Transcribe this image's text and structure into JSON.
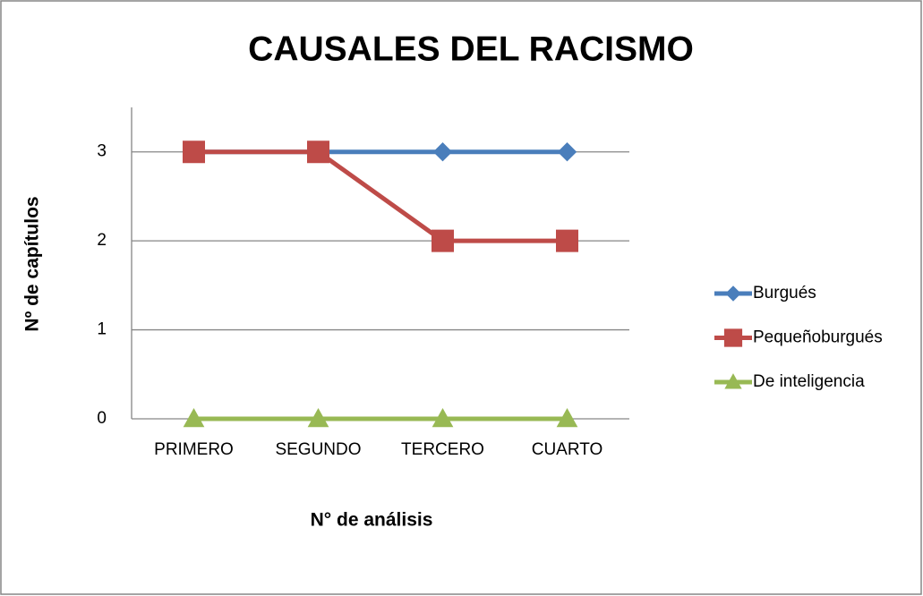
{
  "chart_data": {
    "type": "line",
    "title": "CAUSALES DEL RACISMO",
    "x_label": "N° de análisis",
    "y_label": "Nº de capítulos",
    "categories": [
      "PRIMERO",
      "SEGUNDO",
      "TERCERO",
      "CUARTO"
    ],
    "series": [
      {
        "name": "Burgués",
        "color": "#4a7ebb",
        "marker": "diamond",
        "values": [
          3,
          3,
          3,
          3
        ]
      },
      {
        "name": "Pequeñoburgués",
        "color": "#be4b48",
        "marker": "square",
        "values": [
          3,
          3,
          2,
          2
        ]
      },
      {
        "name": "De inteligencia",
        "color": "#98b954",
        "marker": "triangle",
        "values": [
          0,
          0,
          0,
          0
        ]
      }
    ],
    "ylim": [
      0,
      3.5
    ],
    "yticks": [
      0,
      1,
      2,
      3
    ],
    "grid": true,
    "legend": "right"
  }
}
